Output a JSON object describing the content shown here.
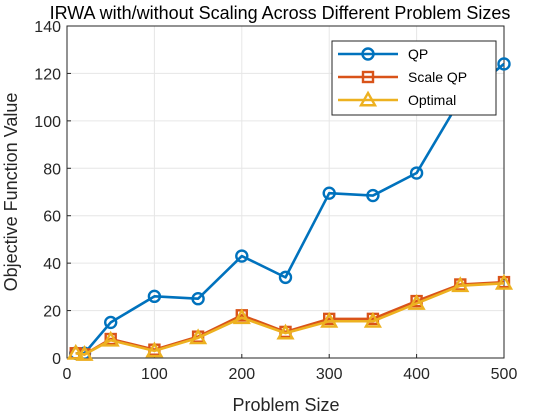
{
  "chart_data": {
    "type": "line",
    "title": "IRWA with/without Scaling Across Different Problem Sizes",
    "xlabel": "Problem Size",
    "ylabel": "Objective Function Value",
    "xlim": [
      0,
      500
    ],
    "ylim": [
      0,
      140
    ],
    "xticks": [
      0,
      100,
      200,
      300,
      400,
      500
    ],
    "yticks": [
      0,
      20,
      40,
      60,
      80,
      100,
      120,
      140
    ],
    "grid": true,
    "legend_position": "top-right",
    "x": [
      10,
      20,
      50,
      100,
      150,
      200,
      250,
      300,
      350,
      400,
      450,
      500
    ],
    "series": [
      {
        "name": "QP",
        "color": "#0072BD",
        "marker": "circle",
        "values": [
          2,
          2,
          15,
          26,
          25,
          43,
          34,
          69.5,
          68.5,
          78,
          109,
          124
        ]
      },
      {
        "name": "Scale QP",
        "color": "#D95319",
        "marker": "square",
        "values": [
          2,
          1.5,
          8,
          3.5,
          9,
          18,
          11,
          16.5,
          16.5,
          24,
          31,
          32
        ]
      },
      {
        "name": "Optimal",
        "color": "#EDB120",
        "marker": "triangle",
        "values": [
          2,
          1.5,
          7.5,
          3,
          8.5,
          17,
          10.5,
          15.5,
          15.5,
          23,
          30.5,
          31.5
        ]
      }
    ]
  }
}
